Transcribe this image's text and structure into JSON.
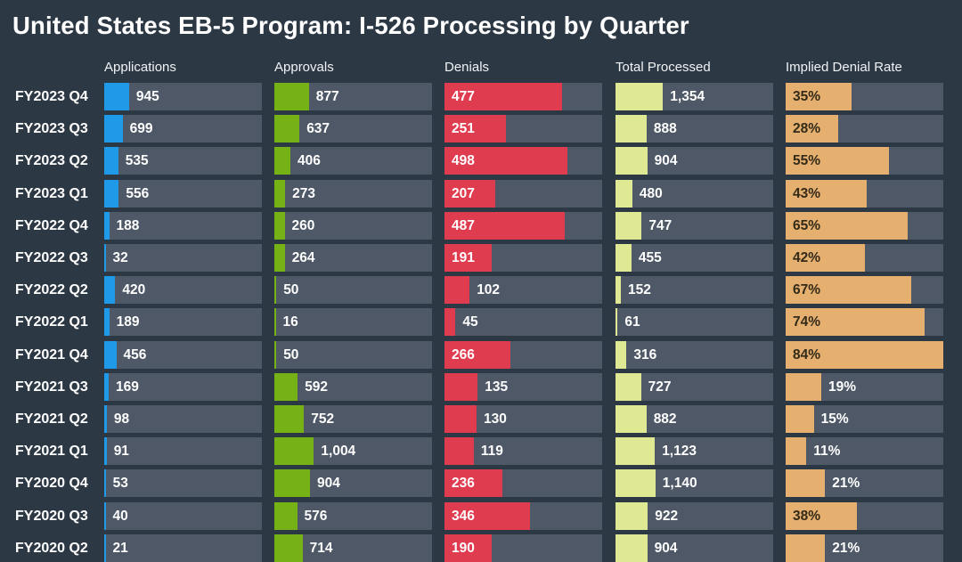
{
  "title": "United States EB-5 Program: I-526 Processing by Quarter",
  "colors": {
    "background": "#2D3845",
    "track": "#4E5866",
    "title_text": "#FFFFFF",
    "header_text": "#F0F3F5",
    "row_label_text": "#FFFFFF",
    "value_text_outside": "#FFFFFF"
  },
  "chart_data": {
    "type": "bar",
    "orientation": "horizontal",
    "grid": false,
    "legend": "none",
    "title": "United States EB-5 Program: I-526 Processing by Quarter",
    "categories": [
      "FY2023 Q4",
      "FY2023 Q3",
      "FY2023 Q2",
      "FY2023 Q1",
      "FY2022 Q4",
      "FY2022 Q3",
      "FY2022 Q2",
      "FY2022 Q1",
      "FY2021 Q4",
      "FY2021 Q3",
      "FY2021 Q2",
      "FY2021 Q1",
      "FY2020 Q4",
      "FY2020 Q3",
      "FY2020 Q2"
    ],
    "series": [
      {
        "name": "Applications",
        "color": "#1E9AE8",
        "inside_label_color": "#FFFFFF",
        "bar_scale_max": 6000,
        "values": [
          945,
          699,
          535,
          556,
          188,
          32,
          420,
          189,
          456,
          169,
          98,
          91,
          53,
          40,
          21
        ],
        "labels": [
          "945",
          "699",
          "535",
          "556",
          "188",
          "32",
          "420",
          "189",
          "456",
          "169",
          "98",
          "91",
          "53",
          "40",
          "21"
        ]
      },
      {
        "name": "Approvals",
        "color": "#76B216",
        "inside_label_color": "#FFFFFF",
        "bar_scale_max": 4000,
        "values": [
          877,
          637,
          406,
          273,
          260,
          264,
          50,
          16,
          50,
          592,
          752,
          1004,
          904,
          576,
          714
        ],
        "labels": [
          "877",
          "637",
          "406",
          "273",
          "260",
          "264",
          "50",
          "16",
          "50",
          "592",
          "752",
          "1,004",
          "904",
          "576",
          "714"
        ]
      },
      {
        "name": "Denials",
        "color": "#E03C50",
        "inside_label_color": "#FFFFFF",
        "bar_scale_max": 640,
        "values": [
          477,
          251,
          498,
          207,
          487,
          191,
          102,
          45,
          266,
          135,
          130,
          119,
          236,
          346,
          190
        ],
        "labels": [
          "477",
          "251",
          "498",
          "207",
          "487",
          "191",
          "102",
          "45",
          "266",
          "135",
          "130",
          "119",
          "236",
          "346",
          "190"
        ]
      },
      {
        "name": "Total Processed",
        "color": "#DFE893",
        "inside_label_color": "#333018",
        "bar_scale_max": 4500,
        "values": [
          1354,
          888,
          904,
          480,
          747,
          455,
          152,
          61,
          316,
          727,
          882,
          1123,
          1140,
          922,
          904
        ],
        "labels": [
          "1,354",
          "888",
          "904",
          "480",
          "747",
          "455",
          "152",
          "61",
          "316",
          "727",
          "882",
          "1,123",
          "1,140",
          "922",
          "904"
        ]
      },
      {
        "name": "Implied Denial Rate",
        "color": "#E5AF6F",
        "inside_label_color": "#332A18",
        "bar_scale_max": 84,
        "unit": "%",
        "values": [
          35,
          28,
          55,
          43,
          65,
          42,
          67,
          74,
          84,
          19,
          15,
          11,
          21,
          38,
          21
        ],
        "labels": [
          "35%",
          "28%",
          "55%",
          "43%",
          "65%",
          "42%",
          "67%",
          "74%",
          "84%",
          "19%",
          "15%",
          "11%",
          "21%",
          "38%",
          "21%"
        ]
      }
    ]
  }
}
